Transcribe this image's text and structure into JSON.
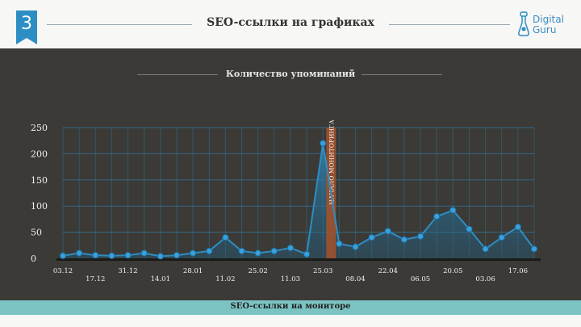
{
  "header": {
    "slide_number": "3",
    "title": "SEO-ссылки на графиках",
    "logo_line1": "Digital",
    "logo_line2": "Guru",
    "accent_color": "#2d8ec4"
  },
  "footer": {
    "text": "SEO-ссылки на мониторе",
    "color": "#7cc4c4"
  },
  "chart_data": {
    "type": "area",
    "title": "Количество упоминаний",
    "xlabel": "",
    "ylabel": "",
    "ylim": [
      0,
      250
    ],
    "yticks": [
      0,
      50,
      100,
      150,
      200,
      250
    ],
    "grid": true,
    "series": [
      {
        "values": [
          5,
          10,
          6,
          5,
          6,
          10,
          4,
          6,
          10,
          14,
          40,
          14,
          10,
          14,
          20,
          8,
          220,
          28,
          22,
          40,
          52,
          36,
          42,
          80,
          92,
          56,
          18,
          40,
          60,
          18
        ]
      }
    ],
    "tick_labels": [
      {
        "index": 0,
        "label": "03.12",
        "row": 0
      },
      {
        "index": 2,
        "label": "17.12",
        "row": 1
      },
      {
        "index": 4,
        "label": "31.12",
        "row": 0
      },
      {
        "index": 6,
        "label": "14.01",
        "row": 1
      },
      {
        "index": 8,
        "label": "28.01",
        "row": 0
      },
      {
        "index": 10,
        "label": "11.02",
        "row": 1
      },
      {
        "index": 12,
        "label": "25.02",
        "row": 0
      },
      {
        "index": 14,
        "label": "11.03",
        "row": 1
      },
      {
        "index": 16,
        "label": "25.03",
        "row": 0
      },
      {
        "index": 18,
        "label": "08.04",
        "row": 1
      },
      {
        "index": 20,
        "label": "22.04",
        "row": 0
      },
      {
        "index": 22,
        "label": "06.05",
        "row": 1
      },
      {
        "index": 24,
        "label": "20.05",
        "row": 0
      },
      {
        "index": 26,
        "label": "03.06",
        "row": 1
      },
      {
        "index": 28,
        "label": "17.06",
        "row": 0
      }
    ],
    "annotation": {
      "label": "НАЧАЛО МОНИТОРИНГА",
      "at_index": 16.5,
      "color": "#a0522d"
    },
    "line_color": "#2d8ec4"
  }
}
